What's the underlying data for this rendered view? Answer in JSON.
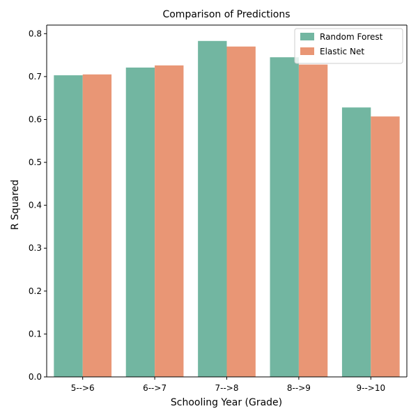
{
  "chart_data": {
    "type": "bar",
    "title": "Comparison of Predictions",
    "xlabel": "Schooling Year (Grade)",
    "ylabel": "R Squared",
    "categories": [
      "5-->6",
      "6-->7",
      "7-->8",
      "8-->9",
      "9-->10"
    ],
    "series": [
      {
        "name": "Random Forest",
        "color": "#72b6a1",
        "values": [
          0.703,
          0.721,
          0.783,
          0.745,
          0.628
        ]
      },
      {
        "name": "Elastic Net",
        "color": "#e99675",
        "values": [
          0.705,
          0.726,
          0.77,
          0.728,
          0.607
        ]
      }
    ],
    "ylim": [
      0,
      0.82
    ],
    "yticks": [
      "0.0",
      "0.1",
      "0.2",
      "0.3",
      "0.4",
      "0.5",
      "0.6",
      "0.7",
      "0.8"
    ],
    "grid": false,
    "legend_position": "top-right"
  }
}
